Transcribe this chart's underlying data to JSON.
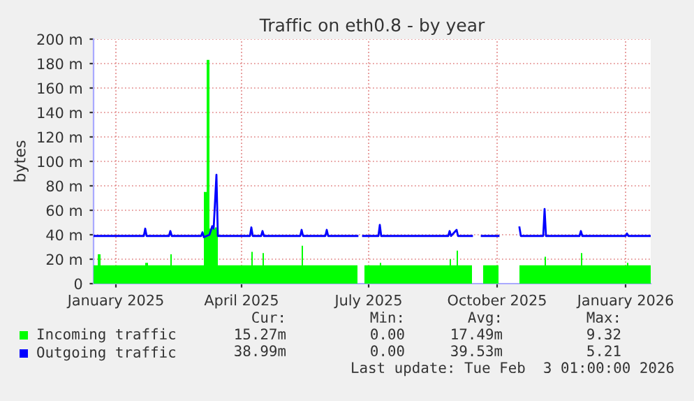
{
  "chart_data": {
    "type": "area",
    "title": "Traffic on eth0.8 - by year",
    "ylabel": "bytes",
    "xlim": [
      "2024-12-31",
      "2026-02-03"
    ],
    "xticks": [
      {
        "value": "2025-01-16",
        "label": "January 2025"
      },
      {
        "value": "2025-04-16",
        "label": "April 2025"
      },
      {
        "value": "2025-07-16",
        "label": "July 2025"
      },
      {
        "value": "2025-10-16",
        "label": "October 2025"
      },
      {
        "value": "2026-01-16",
        "label": "January 2026"
      }
    ],
    "ylim": [
      0,
      200
    ],
    "yticks": [
      0,
      {
        "value": 20,
        "label": "20 m"
      },
      {
        "value": 40,
        "label": "40 m"
      },
      {
        "value": 60,
        "label": "60 m"
      },
      {
        "value": 80,
        "label": "80 m"
      },
      {
        "value": 100,
        "label": "100 m"
      },
      {
        "value": 120,
        "label": "120 m"
      },
      {
        "value": 140,
        "label": "140 m"
      },
      {
        "value": 160,
        "label": "160 m"
      },
      {
        "value": 180,
        "label": "180 m"
      },
      {
        "value": 200,
        "label": "200 m"
      }
    ],
    "grid": true,
    "legend": "bottom",
    "series": [
      {
        "name": "Incoming traffic",
        "color": "#00ff00",
        "x": [
          "2024-12-31",
          "2025-01-03",
          "2025-01-05",
          "2025-02-06",
          "2025-02-08",
          "2025-02-23",
          "2025-02-24",
          "2025-02-25",
          "2025-03-19",
          "2025-03-20",
          "2025-03-22",
          "2025-03-24",
          "2025-03-28",
          "2025-03-30",
          "2025-04-23",
          "2025-04-24",
          "2025-05-01",
          "2025-05-02",
          "2025-05-29",
          "2025-05-30",
          "2025-07-08",
          "2025-07-09",
          "2025-07-13",
          "2025-07-24",
          "2025-07-25",
          "2025-09-12",
          "2025-09-13",
          "2025-09-17",
          "2025-09-18",
          "2025-09-28",
          "2025-09-29",
          "2025-10-06",
          "2025-10-17",
          "2025-10-18",
          "2025-11-01",
          "2025-11-19",
          "2025-11-20",
          "2025-12-15",
          "2025-12-16",
          "2026-01-17",
          "2026-01-18",
          "2026-02-03"
        ],
        "values": [
          15,
          24,
          15,
          17,
          15,
          15,
          24,
          15,
          15,
          75,
          183,
          45,
          46,
          15,
          26,
          15,
          25,
          15,
          31,
          15,
          15,
          null,
          15,
          17,
          15,
          20,
          15,
          27,
          15,
          15,
          null,
          15,
          15,
          null,
          15,
          22,
          15,
          25,
          15,
          17,
          15,
          15
        ]
      },
      {
        "name": "Outgoing traffic",
        "type": "line",
        "color": "#0000ff",
        "x": [
          "2024-12-31",
          "2025-02-05",
          "2025-02-06",
          "2025-02-07",
          "2025-02-23",
          "2025-02-24",
          "2025-02-25",
          "2025-03-18",
          "2025-03-19",
          "2025-03-20",
          "2025-03-24",
          "2025-03-26",
          "2025-03-27",
          "2025-03-29",
          "2025-03-30",
          "2025-04-22",
          "2025-04-23",
          "2025-04-24",
          "2025-04-30",
          "2025-05-01",
          "2025-05-02",
          "2025-05-28",
          "2025-05-29",
          "2025-05-30",
          "2025-06-15",
          "2025-06-16",
          "2025-06-17",
          "2025-07-08",
          "2025-07-09",
          "2025-07-12",
          "2025-07-23",
          "2025-07-24",
          "2025-07-25",
          "2025-09-11",
          "2025-09-12",
          "2025-09-13",
          "2025-09-17",
          "2025-09-18",
          "2025-09-28",
          "2025-09-29",
          "2025-10-05",
          "2025-10-17",
          "2025-10-18",
          "2025-11-01",
          "2025-11-02",
          "2025-11-18",
          "2025-11-19",
          "2025-11-20",
          "2025-12-14",
          "2025-12-15",
          "2025-12-16",
          "2026-01-16",
          "2026-01-17",
          "2026-01-18",
          "2026-02-03"
        ],
        "values": [
          39,
          39,
          45,
          39,
          39,
          43,
          39,
          39,
          42,
          38,
          40,
          47,
          45,
          89,
          39,
          39,
          46,
          39,
          39,
          43,
          39,
          39,
          44,
          39,
          39,
          44,
          39,
          39,
          null,
          39,
          39,
          48,
          39,
          39,
          43,
          39,
          44,
          39,
          39,
          null,
          39,
          39,
          null,
          46,
          39,
          39,
          61,
          39,
          39,
          43,
          39,
          39,
          41,
          39,
          39
        ]
      }
    ],
    "annotations": [
      "Cur:",
      "Min:",
      "Avg:",
      "Max:",
      "15.27m",
      "0.00",
      "17.49m",
      "9.32",
      "38.99m",
      "0.00",
      "39.53m",
      "5.21",
      "Last update: Tue Feb  3 01:00:00 2026"
    ]
  }
}
